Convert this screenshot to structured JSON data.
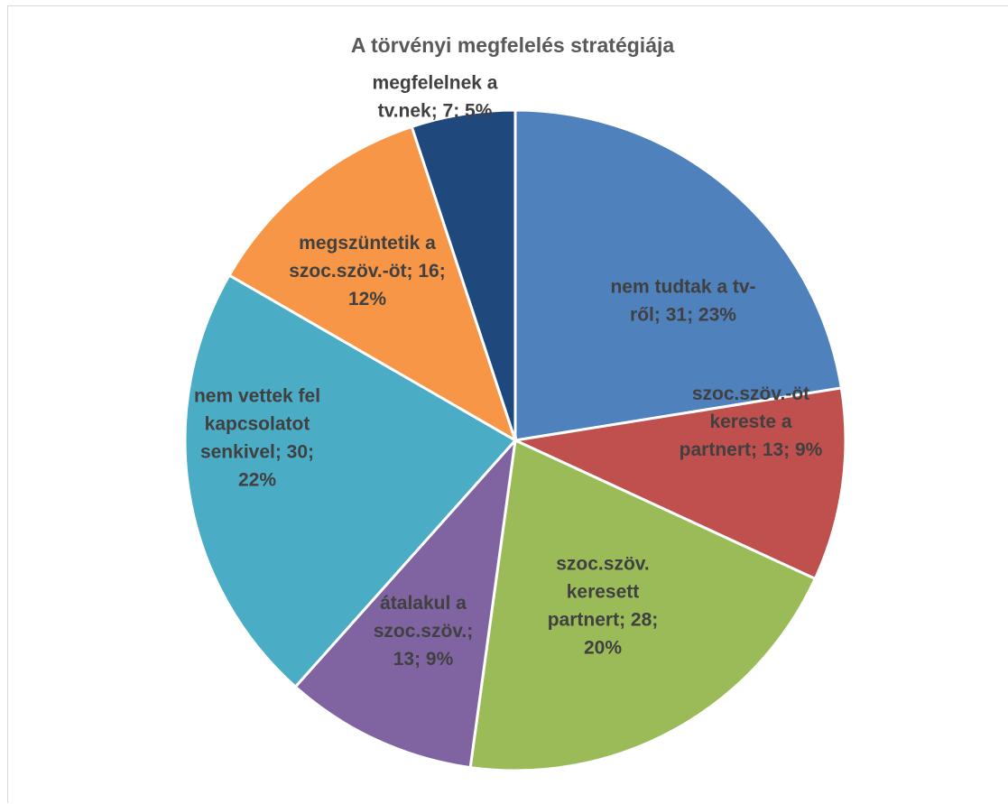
{
  "chart_data": {
    "type": "pie",
    "title": "A törvényi megfelelés stratégiája",
    "slices": [
      {
        "name": "nem tudtak a tv-ről",
        "value": 31,
        "percent": "23%",
        "color": "#4f81bd",
        "label_lines": [
          "nem tudtak a tv-",
          "ről; 31; 23%"
        ]
      },
      {
        "name": "szoc.szöv.-öt kereste a partnert",
        "value": 13,
        "percent": "9%",
        "color": "#c0504d",
        "label_lines": [
          "szoc.szöv.-öt",
          "kereste a",
          "partnert; 13; 9%"
        ]
      },
      {
        "name": "szoc.szöv. keresett partnert",
        "value": 28,
        "percent": "20%",
        "color": "#9bbb59",
        "label_lines": [
          "szoc.szöv.",
          "keresett",
          "partnert; 28;",
          "20%"
        ]
      },
      {
        "name": "átalakul a szoc.szöv.",
        "value": 13,
        "percent": "9%",
        "color": "#8064a2",
        "label_lines": [
          "átalakul a",
          "szoc.szöv.;",
          "13; 9%"
        ]
      },
      {
        "name": "nem vettek fel kapcsolatot senkivel",
        "value": 30,
        "percent": "22%",
        "color": "#4bacc6",
        "label_lines": [
          "nem vettek fel",
          "kapcsolatot",
          "senkivel; 30;",
          "22%"
        ]
      },
      {
        "name": "megszüntetik a szoc.szöv.-öt",
        "value": 16,
        "percent": "12%",
        "color": "#f79646",
        "label_lines": [
          "megszüntetik a",
          "szoc.szöv.-öt; 16;",
          "12%"
        ]
      },
      {
        "name": "megfelelnek a tv.nek",
        "value": 7,
        "percent": "5%",
        "color": "#1f497d",
        "label_lines": [
          "megfelelnek a",
          "tv.nek; 7; 5%"
        ]
      }
    ]
  }
}
